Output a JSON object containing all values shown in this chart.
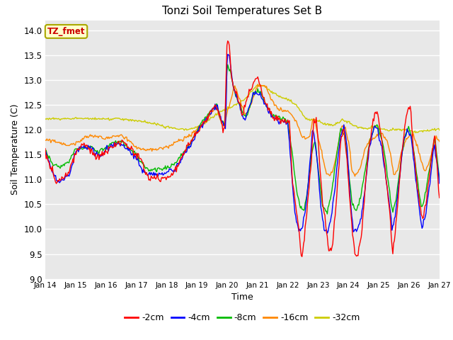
{
  "title": "Tonzi Soil Temperatures Set B",
  "xlabel": "Time",
  "ylabel": "Soil Temperature (C)",
  "legend_label": "TZ_fmet",
  "series_labels": [
    "-2cm",
    "-4cm",
    "-8cm",
    "-16cm",
    "-32cm"
  ],
  "series_colors": [
    "#ff0000",
    "#0000ff",
    "#00bb00",
    "#ff8800",
    "#cccc00"
  ],
  "ylim": [
    9.0,
    14.2
  ],
  "yticks": [
    9.0,
    9.5,
    10.0,
    10.5,
    11.0,
    11.5,
    12.0,
    12.5,
    13.0,
    13.5,
    14.0
  ],
  "background_color": "#e8e8e8",
  "n_points": 500
}
